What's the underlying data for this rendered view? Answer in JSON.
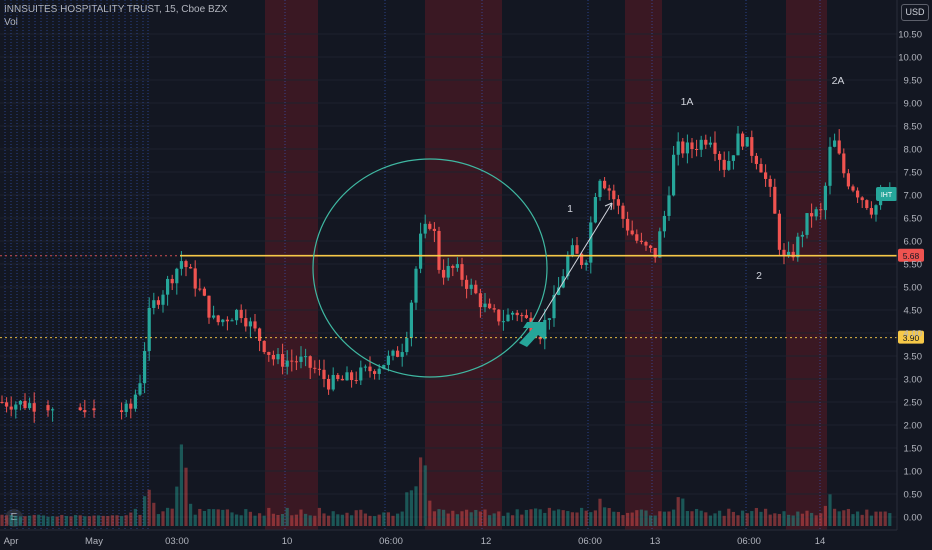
{
  "header": {
    "title": "INNSUITES HOSPITALITY TRUST, 15, Cboe BZX",
    "volume_label": "Vol"
  },
  "currency": "USD",
  "logo": "E",
  "colors": {
    "background": "#131722",
    "up": "#26a69a",
    "down": "#ef5350",
    "session_band": "#5b1a24",
    "resistance_line": "#f7c948",
    "support_line": "#f7c948",
    "circle": "#3fb8a2",
    "arrow": "#26a69a"
  },
  "chart_data": {
    "type": "candlestick",
    "x_ticks": [
      "Apr",
      "May",
      "03:00",
      "10",
      "06:00",
      "12",
      "06:00",
      "13",
      "06:00",
      "14"
    ],
    "y_ticks": [
      0.0,
      0.5,
      1.0,
      1.5,
      2.0,
      2.5,
      3.0,
      3.5,
      4.0,
      4.5,
      5.0,
      5.5,
      6.0,
      6.5,
      7.0,
      7.5,
      8.0,
      8.5,
      9.0,
      9.5,
      10.0,
      10.5
    ],
    "ylim": [
      -0.25,
      10.9
    ],
    "horizontal_lines": [
      {
        "value": 5.68,
        "label": "5.68",
        "style": "solid"
      },
      {
        "value": 3.9,
        "label": "3.90",
        "style": "dotted"
      }
    ],
    "last_price_label": "IHT",
    "annotations": [
      "1",
      "1A",
      "2",
      "2A"
    ]
  }
}
